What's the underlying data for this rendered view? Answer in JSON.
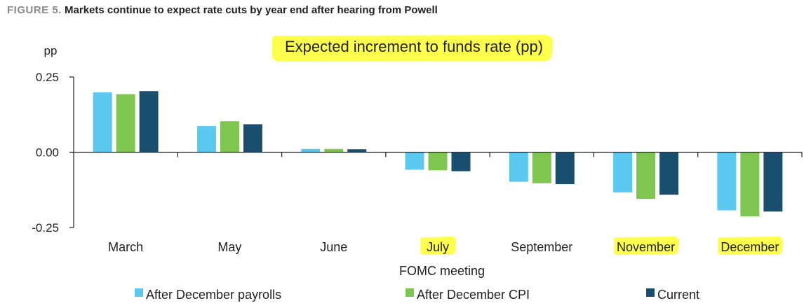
{
  "figure": {
    "number_label": "FIGURE 5.",
    "caption": "Markets continue to expect rate cuts by year end after hearing from Powell"
  },
  "chart_data": {
    "type": "bar",
    "title": "Expected increment to funds rate (pp)",
    "ylabel": "pp",
    "xlabel": "FOMC meeting",
    "ylim": [
      -0.25,
      0.25
    ],
    "yticks": [
      0.25,
      0.0,
      -0.25
    ],
    "ytick_labels": [
      "0.25",
      "0.00",
      "-0.25"
    ],
    "grid": false,
    "legend_position": "bottom",
    "categories": [
      "March",
      "May",
      "June",
      "July",
      "September",
      "November",
      "December"
    ],
    "highlighted_categories": [
      "July",
      "November",
      "December"
    ],
    "series": [
      {
        "name": "After December payrolls",
        "color": "#5bc8f0",
        "values": [
          0.199,
          0.087,
          0.011,
          -0.058,
          -0.098,
          -0.133,
          -0.193
        ]
      },
      {
        "name": "After December CPI",
        "color": "#7ec650",
        "values": [
          0.193,
          0.103,
          0.011,
          -0.06,
          -0.103,
          -0.155,
          -0.213
        ]
      },
      {
        "name": "Current",
        "color": "#1a4e6e",
        "values": [
          0.203,
          0.093,
          0.01,
          -0.063,
          -0.106,
          -0.141,
          -0.197
        ]
      }
    ],
    "highlight_color": "#ffff4d"
  }
}
